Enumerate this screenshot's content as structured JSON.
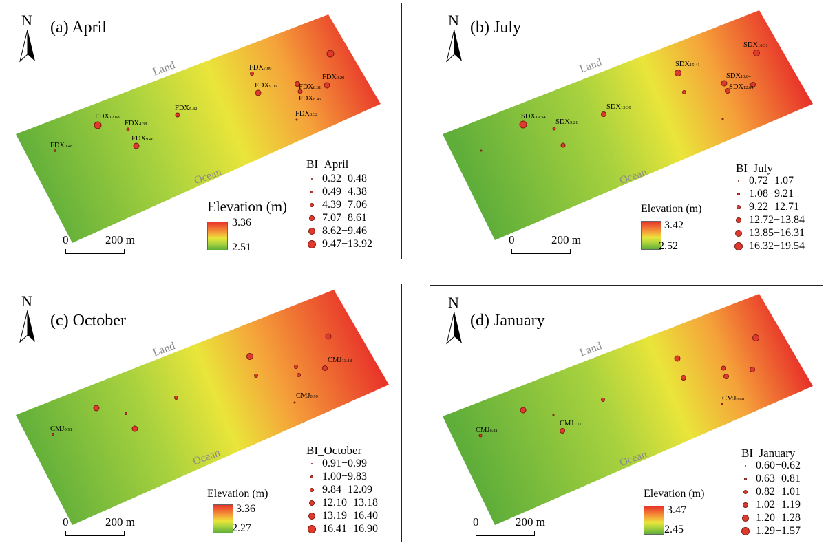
{
  "map_common": {
    "north_label": "N",
    "land_label": "Land",
    "ocean_label": "Ocean",
    "scale_start": "0",
    "scale_end": "200 m",
    "elevation_title": "Elevation (m)",
    "colors": {
      "high": "#e8352a",
      "mid": "#eae53a",
      "low": "#5fae3a",
      "point": "#e03a2e"
    }
  },
  "panels": [
    {
      "title": "(a) April",
      "legend_title": "BI_April",
      "legend_items": [
        "0.32−0.48",
        "0.49−4.38",
        "4.39−7.06",
        "7.07−8.61",
        "8.62−9.46",
        "9.47−13.92"
      ],
      "elev_max": "3.36",
      "elev_min": "2.51",
      "labels": [
        {
          "prefix": "FDX",
          "sub": "0.48"
        },
        {
          "prefix": "FDX",
          "sub": "12.68"
        },
        {
          "prefix": "FDX",
          "sub": "4.38"
        },
        {
          "prefix": "FDX",
          "sub": "9.46"
        },
        {
          "prefix": "FDX",
          "sub": "5.82"
        },
        {
          "prefix": "FDX",
          "sub": "7.06"
        },
        {
          "prefix": "FDX",
          "sub": "9.06"
        },
        {
          "prefix": "FDX",
          "sub": "8.61"
        },
        {
          "prefix": "FDX",
          "sub": "8.46"
        },
        {
          "prefix": "FDX",
          "sub": "9.20"
        },
        {
          "prefix": "FDX",
          "sub": "0.32"
        }
      ]
    },
    {
      "title": "(b) July",
      "legend_title": "BI_July",
      "legend_items": [
        "0.72−1.07",
        "1.08−9.21",
        "9.22−12.71",
        "12.72−13.84",
        "13.85−16.31",
        "16.32−19.54"
      ],
      "elev_max": "3.42",
      "elev_min": "2.52",
      "labels": [
        {
          "prefix": "SDX",
          "sub": "19.54"
        },
        {
          "prefix": "SDX",
          "sub": "9.21"
        },
        {
          "prefix": "SDX",
          "sub": "13.30"
        },
        {
          "prefix": "SDX",
          "sub": "15.41"
        },
        {
          "prefix": "SDX",
          "sub": "13.84"
        },
        {
          "prefix": "SDX",
          "sub": "12.84"
        },
        {
          "prefix": "SDX",
          "sub": "16.31"
        }
      ]
    },
    {
      "title": "(c) October",
      "legend_title": "BI_October",
      "legend_items": [
        "0.91−0.99",
        "1.00−9.83",
        "9.84−12.09",
        "12.10−13.18",
        "13.19−16.40",
        "16.41−16.90"
      ],
      "elev_max": "3.36",
      "elev_min": "2.27",
      "labels": [
        {
          "prefix": "CMJ",
          "sub": "0.91"
        },
        {
          "prefix": "CMJ",
          "sub": "0.99"
        },
        {
          "prefix": "CMJ",
          "sub": "13.18"
        }
      ]
    },
    {
      "title": "(d) January",
      "legend_title": "BI_January",
      "legend_items": [
        "0.60−0.62",
        "0.63−0.81",
        "0.82−1.01",
        "1.02−1.19",
        "1.20−1.28",
        "1.29−1.57"
      ],
      "elev_max": "3.47",
      "elev_min": "2.45",
      "labels": [
        {
          "prefix": "CMJ",
          "sub": "0.81"
        },
        {
          "prefix": "CMJ",
          "sub": "1.17"
        },
        {
          "prefix": "CMJ",
          "sub": "0.60"
        }
      ]
    }
  ]
}
